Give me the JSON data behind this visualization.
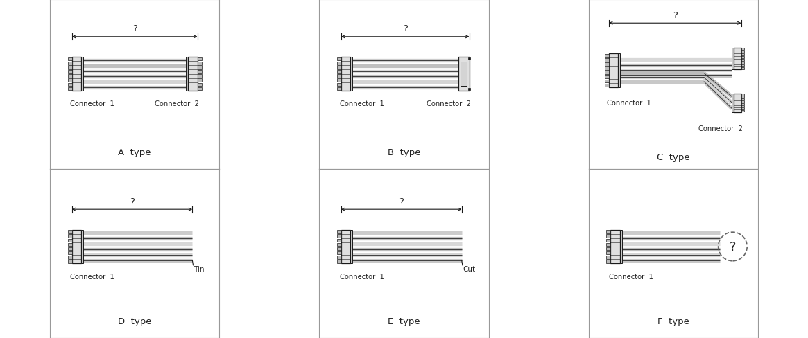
{
  "bg_color": "#ffffff",
  "border_color": "#999999",
  "line_color": "#1a1a1a",
  "cable_fill": "#d0d0d0",
  "cable_dark": "#888888",
  "cable_light": "#eeeeee",
  "conn_fill": "#e0e0e0",
  "conn_dark": "#555555",
  "text_color": "#222222",
  "panels": [
    {
      "type": "A",
      "label": "A  type",
      "c1": "Connector  1",
      "c2": "Connector  2"
    },
    {
      "type": "B",
      "label": "B  type",
      "c1": "Connector  1",
      "c2": "Connector  2"
    },
    {
      "type": "C",
      "label": "C  type",
      "c1": "Connector  1",
      "c2": "Connector  2"
    },
    {
      "type": "D",
      "label": "D  type",
      "c1": "Connector  1",
      "note": "Tin"
    },
    {
      "type": "E",
      "label": "E  type",
      "c1": "Connector  1",
      "note": "Cut"
    },
    {
      "type": "F",
      "label": "F  type",
      "c1": "Connector  1",
      "note": "?"
    }
  ],
  "n_cables": 6,
  "cable_spread": 1.6,
  "figsize": [
    11.65,
    4.89
  ],
  "dpi": 100
}
